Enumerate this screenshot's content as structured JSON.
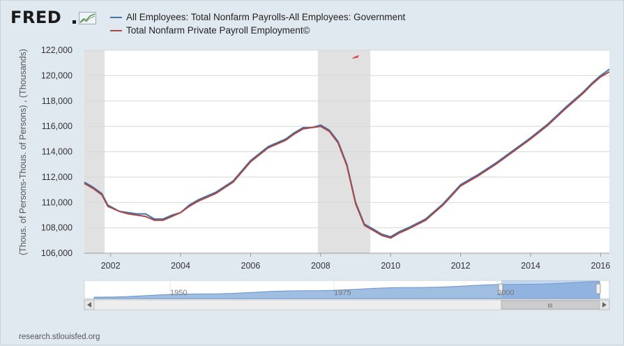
{
  "logo": {
    "text": "FRED",
    "icon": "line-graph-icon"
  },
  "footer": {
    "source": "research.stlouisfed.org"
  },
  "colors": {
    "series_1": "#4572a7",
    "series_2": "#aa4643",
    "recession": "#e1e1e1",
    "navigator": "#9fbee2"
  },
  "chart_data": {
    "type": "line",
    "ylabel": "(Thous. of Persons-Thous. of Persons) , (Thousands)",
    "xlim": [
      2001.25,
      2016.25
    ],
    "ylim": [
      106000,
      122000
    ],
    "y_ticks": [
      "106,000",
      "108,000",
      "110,000",
      "112,000",
      "114,000",
      "116,000",
      "118,000",
      "120,000",
      "122,000"
    ],
    "x_ticks": [
      "2002",
      "2004",
      "2006",
      "2008",
      "2010",
      "2012",
      "2014",
      "2016"
    ],
    "grid": true,
    "legend_position": "top-left",
    "recessions": [
      [
        2001.25,
        2001.83
      ],
      [
        2007.92,
        2009.42
      ]
    ],
    "series": [
      {
        "name": "All Employees: Total Nonfarm Payrolls-All Employees: Government",
        "color": "#4572a7",
        "x": [
          2001.25,
          2001.5,
          2001.75,
          2001.92,
          2002.25,
          2002.5,
          2002.75,
          2003.0,
          2003.25,
          2003.5,
          2003.75,
          2004.0,
          2004.25,
          2004.5,
          2005.0,
          2005.5,
          2006.0,
          2006.5,
          2007.0,
          2007.25,
          2007.5,
          2007.75,
          2008.0,
          2008.25,
          2008.5,
          2008.75,
          2009.0,
          2009.25,
          2009.5,
          2009.75,
          2010.0,
          2010.25,
          2010.5,
          2011.0,
          2011.25,
          2011.5,
          2012.0,
          2012.5,
          2013.0,
          2013.5,
          2014.0,
          2014.5,
          2015.0,
          2015.5,
          2015.75,
          2016.0,
          2016.25
        ],
        "y": [
          111600,
          111200,
          110700,
          109800,
          109300,
          109200,
          109100,
          109100,
          108700,
          108700,
          109000,
          109200,
          109800,
          110200,
          110800,
          111700,
          113300,
          114400,
          115000,
          115500,
          115900,
          115900,
          116100,
          115700,
          114800,
          113000,
          110000,
          108300,
          107900,
          107500,
          107300,
          107700,
          108000,
          108700,
          109300,
          109900,
          111400,
          112200,
          113100,
          114100,
          115100,
          116200,
          117500,
          118700,
          119400,
          120000,
          120500
        ]
      },
      {
        "name": "Total Nonfarm Private Payroll Employment©",
        "color": "#aa4643",
        "x": [
          2001.25,
          2001.5,
          2001.75,
          2001.92,
          2002.25,
          2002.5,
          2002.75,
          2003.0,
          2003.25,
          2003.5,
          2003.75,
          2004.0,
          2004.25,
          2004.5,
          2005.0,
          2005.5,
          2006.0,
          2006.5,
          2007.0,
          2007.25,
          2007.5,
          2007.75,
          2008.0,
          2008.25,
          2008.5,
          2008.75,
          2009.0,
          2009.25,
          2009.5,
          2009.75,
          2010.0,
          2010.25,
          2010.5,
          2011.0,
          2011.25,
          2011.5,
          2012.0,
          2012.5,
          2013.0,
          2013.5,
          2014.0,
          2014.5,
          2015.0,
          2015.5,
          2015.75,
          2016.0,
          2016.25
        ],
        "y": [
          111500,
          111100,
          110600,
          109700,
          109300,
          109100,
          109000,
          108900,
          108600,
          108600,
          108900,
          109200,
          109700,
          110100,
          110700,
          111600,
          113200,
          114300,
          114900,
          115400,
          115800,
          115900,
          116000,
          115600,
          114700,
          112900,
          109900,
          108200,
          107800,
          107400,
          107200,
          107600,
          107900,
          108600,
          109200,
          109800,
          111300,
          112100,
          113000,
          114000,
          115000,
          116100,
          117400,
          118600,
          119300,
          119900,
          120300
        ]
      }
    ],
    "navigator": {
      "labels": [
        "1950",
        "1975",
        "2000"
      ],
      "scrollbar_glyph": "III"
    }
  }
}
